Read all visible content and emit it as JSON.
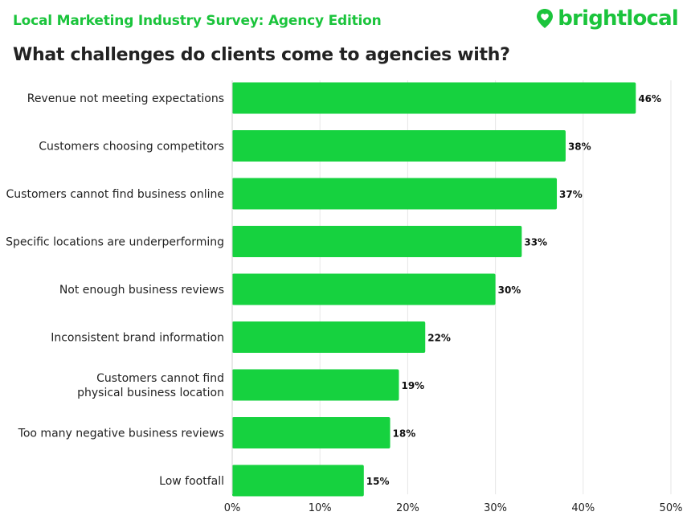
{
  "header": {
    "supertitle": "Local Marketing Industry Survey: Agency Edition",
    "brand": "brightlocal",
    "brand_icon": "location-pin-heart-icon"
  },
  "colors": {
    "bar": "#16d23f",
    "accent": "#1bc43c",
    "grid": "#e6e6e6",
    "text": "#222222"
  },
  "chart_data": {
    "type": "bar",
    "orientation": "horizontal",
    "title": "What challenges do clients come to agencies with?",
    "categories": [
      [
        "Revenue not meeting expectations"
      ],
      [
        "Customers choosing competitors"
      ],
      [
        "Customers cannot find business online"
      ],
      [
        "Specific locations are underperforming"
      ],
      [
        "Not enough business reviews"
      ],
      [
        "Inconsistent brand information"
      ],
      [
        "Customers cannot find",
        "physical business location"
      ],
      [
        "Too many negative business reviews"
      ],
      [
        "Low footfall"
      ]
    ],
    "values": [
      46,
      38,
      37,
      33,
      30,
      22,
      19,
      18,
      15
    ],
    "value_labels": [
      "46%",
      "38%",
      "37%",
      "33%",
      "30%",
      "22%",
      "19%",
      "18%",
      "15%"
    ],
    "xlim": [
      0,
      50
    ],
    "xticks": [
      0,
      10,
      20,
      30,
      40,
      50
    ],
    "xtick_labels": [
      "0%",
      "10%",
      "20%",
      "30%",
      "40%",
      "50%"
    ],
    "grid": true,
    "xlabel": "",
    "ylabel": ""
  }
}
